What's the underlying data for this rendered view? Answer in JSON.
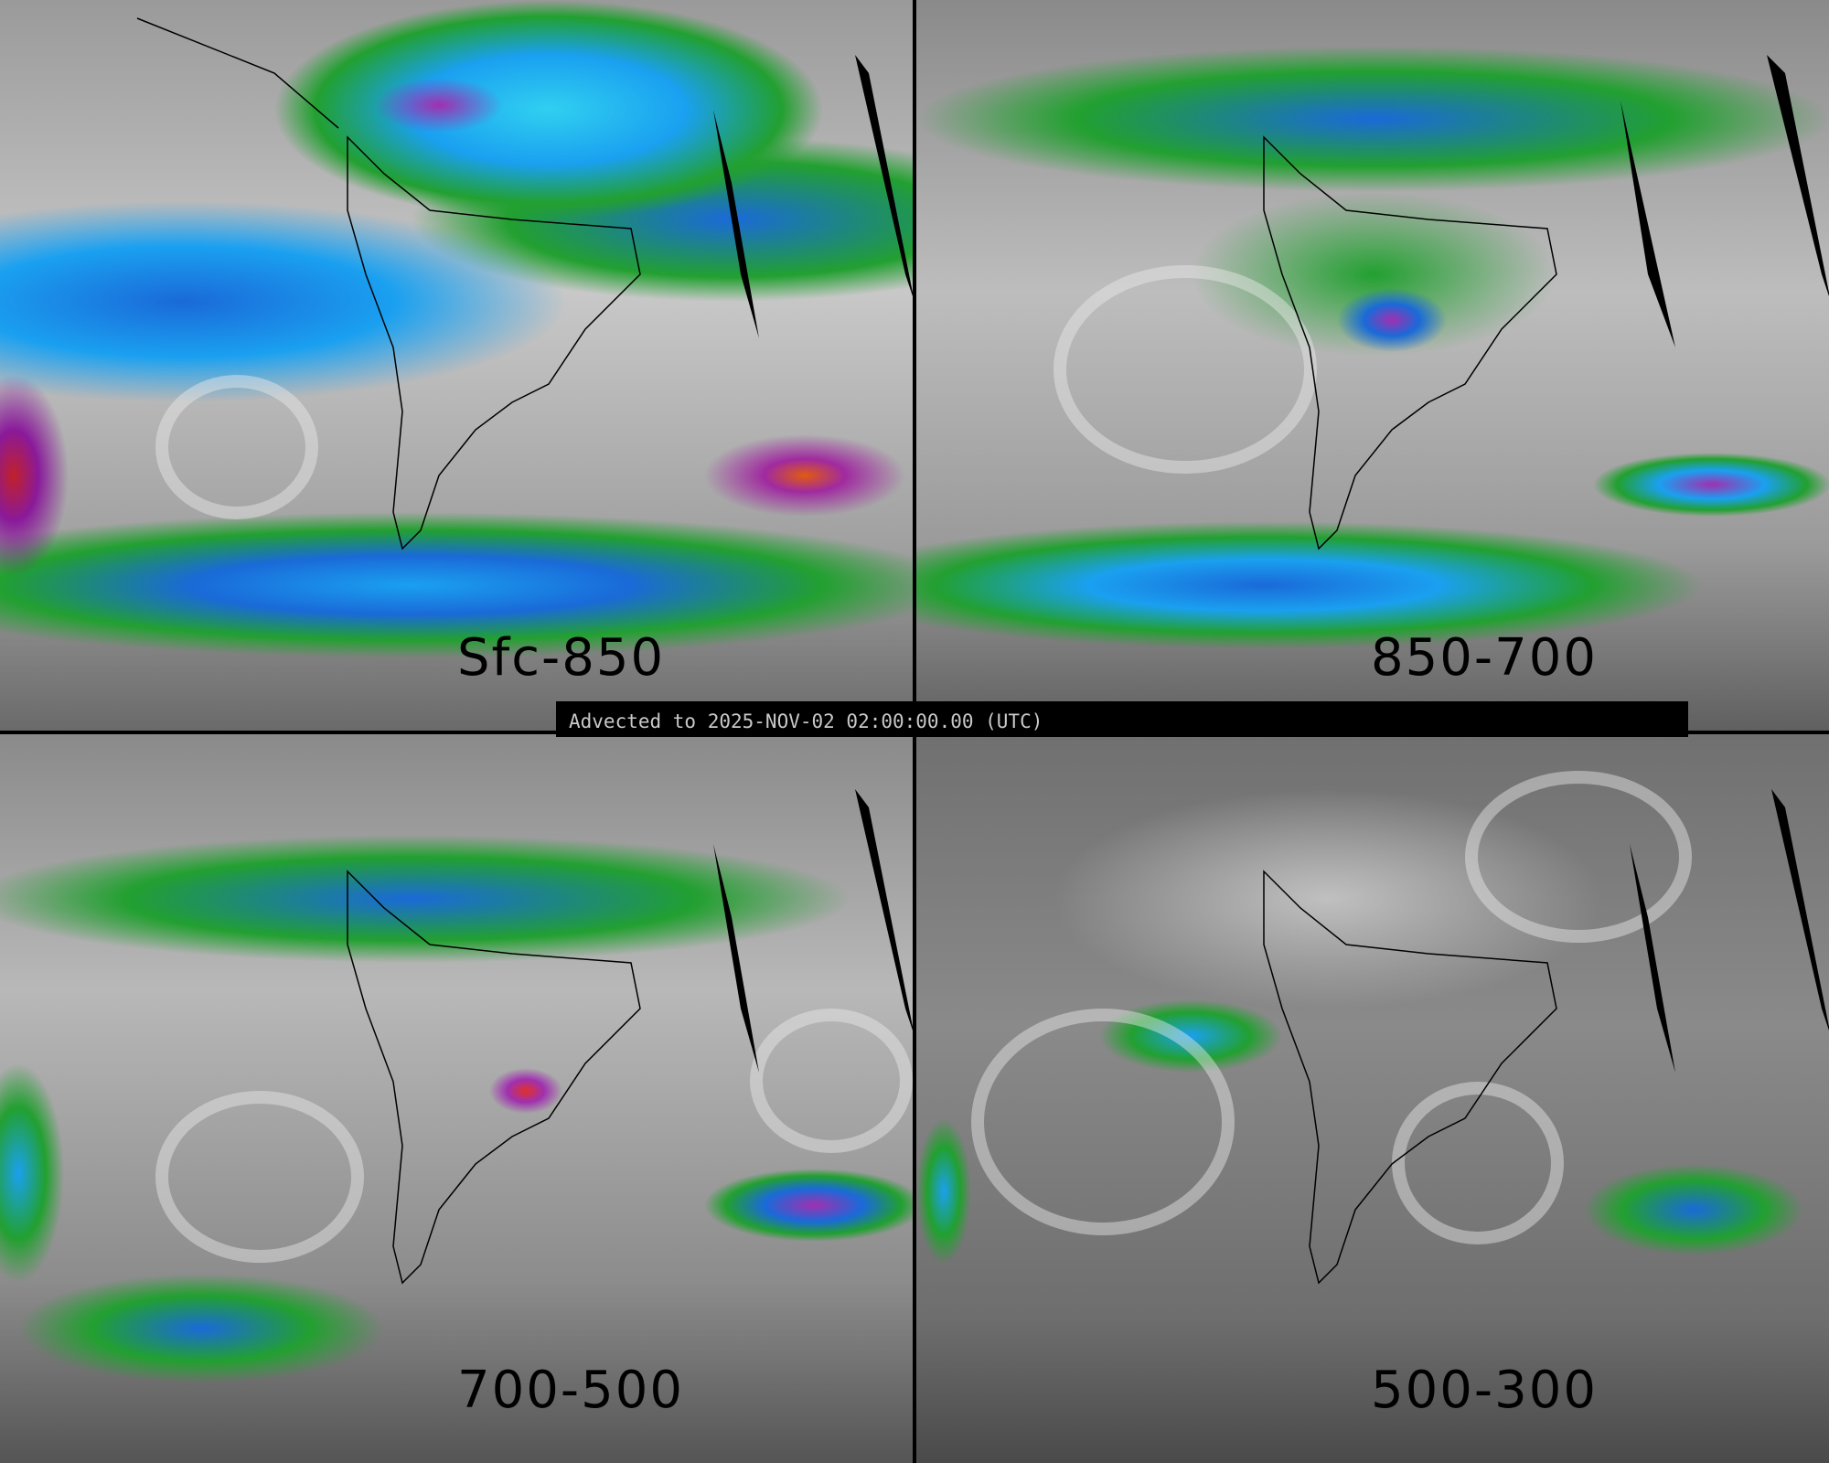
{
  "panels": [
    {
      "label": "Sfc-850"
    },
    {
      "label": "850-700"
    },
    {
      "label": "700-500"
    },
    {
      "label": "500-300"
    }
  ],
  "timestamp": "Advected to 2025-NOV-02 02:00:00.00 (UTC)",
  "colors": {
    "dry": "#808080",
    "moist_low": "#22a030",
    "moist_mid": "#1a6ad8",
    "moist_high": "#1aa0f0",
    "very_moist": "#a030b0",
    "extreme": "#e05a10",
    "missing": "#000000"
  }
}
